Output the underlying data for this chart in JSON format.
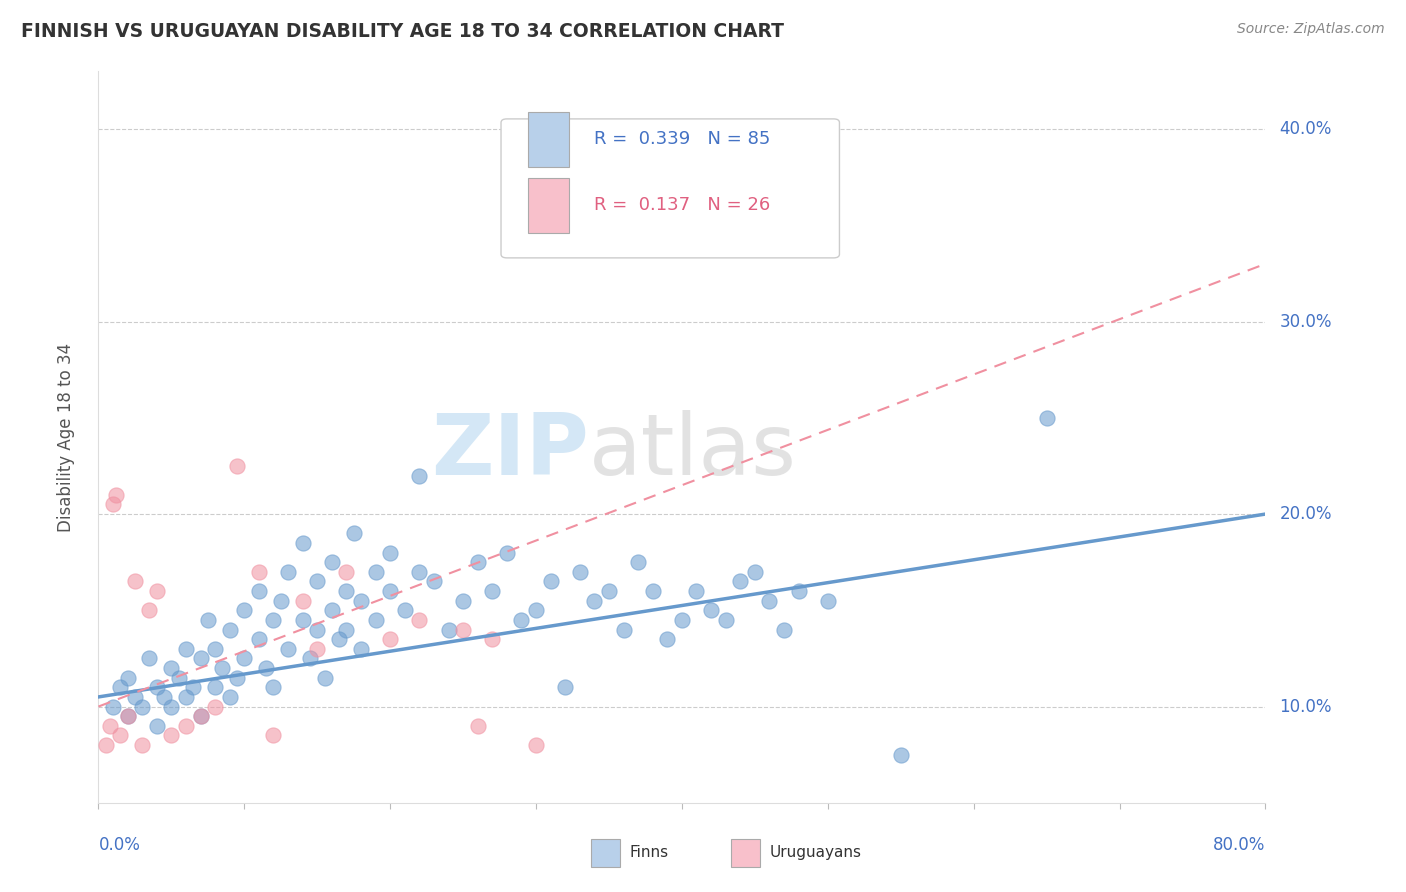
{
  "title": "FINNISH VS URUGUAYAN DISABILITY AGE 18 TO 34 CORRELATION CHART",
  "source": "Source: ZipAtlas.com",
  "ylabel": "Disability Age 18 to 34",
  "r_finns": "0.339",
  "n_finns": "85",
  "r_uruguayans": "0.137",
  "n_uruguayans": "26",
  "blue_color": "#6699cc",
  "pink_color": "#f090a0",
  "blue_fill": "#b8d0ea",
  "pink_fill": "#f8c0cb",
  "finns_x": [
    1.0,
    1.5,
    2.0,
    2.0,
    2.5,
    3.0,
    3.5,
    4.0,
    4.0,
    4.5,
    5.0,
    5.0,
    5.5,
    6.0,
    6.0,
    6.5,
    7.0,
    7.0,
    7.5,
    8.0,
    8.0,
    8.5,
    9.0,
    9.0,
    9.5,
    10.0,
    10.0,
    11.0,
    11.0,
    11.5,
    12.0,
    12.0,
    12.5,
    13.0,
    13.0,
    14.0,
    14.0,
    14.5,
    15.0,
    15.0,
    15.5,
    16.0,
    16.0,
    16.5,
    17.0,
    17.0,
    17.5,
    18.0,
    18.0,
    19.0,
    19.0,
    20.0,
    20.0,
    21.0,
    22.0,
    22.0,
    23.0,
    24.0,
    25.0,
    26.0,
    27.0,
    28.0,
    29.0,
    30.0,
    31.0,
    32.0,
    33.0,
    34.0,
    35.0,
    36.0,
    37.0,
    38.0,
    39.0,
    40.0,
    41.0,
    42.0,
    43.0,
    44.0,
    45.0,
    46.0,
    47.0,
    48.0,
    50.0,
    55.0,
    65.0
  ],
  "finns_y": [
    10.0,
    11.0,
    9.5,
    11.5,
    10.5,
    10.0,
    12.5,
    9.0,
    11.0,
    10.5,
    10.0,
    12.0,
    11.5,
    10.5,
    13.0,
    11.0,
    9.5,
    12.5,
    14.5,
    11.0,
    13.0,
    12.0,
    10.5,
    14.0,
    11.5,
    12.5,
    15.0,
    13.5,
    16.0,
    12.0,
    14.5,
    11.0,
    15.5,
    13.0,
    17.0,
    14.5,
    18.5,
    12.5,
    14.0,
    16.5,
    11.5,
    15.0,
    17.5,
    13.5,
    16.0,
    14.0,
    19.0,
    13.0,
    15.5,
    14.5,
    17.0,
    16.0,
    18.0,
    15.0,
    17.0,
    22.0,
    16.5,
    14.0,
    15.5,
    17.5,
    16.0,
    18.0,
    14.5,
    15.0,
    16.5,
    11.0,
    17.0,
    15.5,
    16.0,
    14.0,
    17.5,
    16.0,
    13.5,
    14.5,
    16.0,
    15.0,
    14.5,
    16.5,
    17.0,
    15.5,
    14.0,
    16.0,
    15.5,
    7.5,
    25.0
  ],
  "uruguayans_x": [
    0.5,
    0.8,
    1.0,
    1.2,
    1.5,
    2.0,
    2.5,
    3.0,
    3.5,
    4.0,
    5.0,
    6.0,
    7.0,
    8.0,
    9.5,
    11.0,
    12.0,
    14.0,
    15.0,
    17.0,
    20.0,
    22.0,
    25.0,
    26.0,
    27.0,
    30.0
  ],
  "uruguayans_y": [
    8.0,
    9.0,
    20.5,
    21.0,
    8.5,
    9.5,
    16.5,
    8.0,
    15.0,
    16.0,
    8.5,
    9.0,
    9.5,
    10.0,
    22.5,
    17.0,
    8.5,
    15.5,
    13.0,
    17.0,
    13.5,
    14.5,
    14.0,
    9.0,
    13.5,
    8.0
  ],
  "finn_trend_x0": 0,
  "finn_trend_y0": 10.5,
  "finn_trend_x1": 80,
  "finn_trend_y1": 20.0,
  "uru_trend_x0": 0,
  "uru_trend_y0": 10.0,
  "uru_trend_x1": 80,
  "uru_trend_y1": 33.0,
  "xlim": [
    0,
    80
  ],
  "ylim": [
    5,
    43
  ],
  "ytick_vals": [
    10,
    20,
    30,
    40
  ],
  "ytick_labels": [
    "10.0%",
    "20.0%",
    "30.0%",
    "40.0%"
  ]
}
